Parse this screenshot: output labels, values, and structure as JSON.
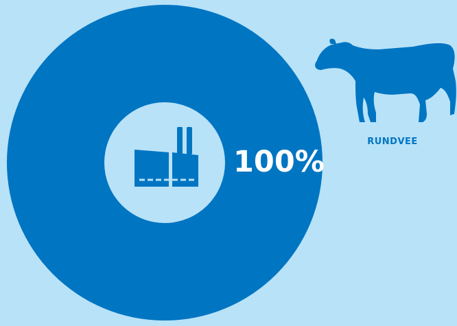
{
  "chart_data": {
    "type": "pie",
    "categories": [
      "RUNDVEE"
    ],
    "values": [
      100
    ],
    "data_labels": [
      "100%"
    ],
    "legend_position": "top-right"
  },
  "colors": {
    "background": "#b8e2f8",
    "slice": "#0075c2",
    "inner": "#b8e2f8",
    "label": "#ffffff"
  },
  "icons": {
    "center": "factory-icon",
    "legend": "cow-icon"
  }
}
